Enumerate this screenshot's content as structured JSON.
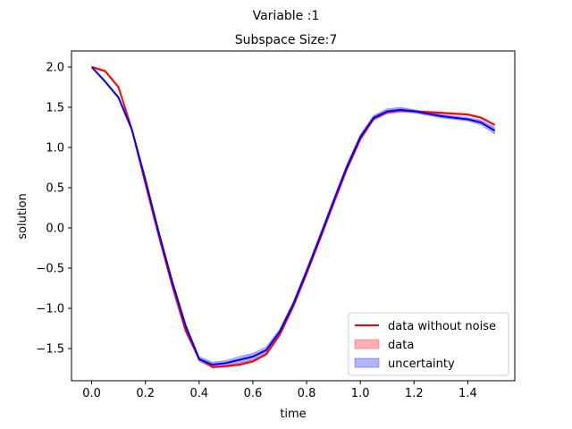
{
  "suptitle": "Variable :1",
  "chart_data": {
    "type": "line",
    "title": "Subspace Size:7",
    "xlabel": "time",
    "ylabel": "solution",
    "xlim": [
      -0.075,
      1.575
    ],
    "ylim": [
      -1.9,
      2.2
    ],
    "xticks": [
      0.0,
      0.2,
      0.4,
      0.6,
      0.8,
      1.0,
      1.2,
      1.4
    ],
    "xtick_labels": [
      "0.0",
      "0.2",
      "0.4",
      "0.6",
      "0.8",
      "1.0",
      "1.2",
      "1.4"
    ],
    "yticks": [
      -1.5,
      -1.0,
      -0.5,
      0.0,
      0.5,
      1.0,
      1.5,
      2.0
    ],
    "ytick_labels": [
      "−1.5",
      "−1.0",
      "−0.5",
      "0.0",
      "0.5",
      "1.0",
      "1.5",
      "2.0"
    ],
    "grid": false,
    "legend_position": "lower-right",
    "x": [
      0.0,
      0.05,
      0.1,
      0.15,
      0.2,
      0.25,
      0.3,
      0.35,
      0.4,
      0.45,
      0.5,
      0.55,
      0.6,
      0.65,
      0.7,
      0.75,
      0.8,
      0.85,
      0.9,
      0.95,
      1.0,
      1.05,
      1.1,
      1.15,
      1.2,
      1.25,
      1.3,
      1.35,
      1.4,
      1.45,
      1.5
    ],
    "series": [
      {
        "name": "data without noise",
        "kind": "line",
        "color": "#ff0000",
        "values": [
          2.0,
          1.95,
          1.75,
          1.22,
          0.55,
          -0.1,
          -0.72,
          -1.28,
          -1.63,
          -1.73,
          -1.72,
          -1.7,
          -1.66,
          -1.57,
          -1.33,
          -0.98,
          -0.57,
          -0.14,
          0.3,
          0.73,
          1.1,
          1.36,
          1.44,
          1.46,
          1.45,
          1.44,
          1.43,
          1.42,
          1.41,
          1.37,
          1.28
        ]
      },
      {
        "name": "data",
        "kind": "band",
        "color": "#ff0000",
        "lower": [
          1.99,
          1.94,
          1.74,
          1.21,
          0.54,
          -0.11,
          -0.73,
          -1.29,
          -1.64,
          -1.74,
          -1.73,
          -1.71,
          -1.67,
          -1.58,
          -1.34,
          -0.99,
          -0.58,
          -0.15,
          0.29,
          0.72,
          1.09,
          1.35,
          1.43,
          1.45,
          1.44,
          1.43,
          1.42,
          1.41,
          1.4,
          1.36,
          1.27
        ],
        "upper": [
          2.01,
          1.96,
          1.76,
          1.23,
          0.56,
          -0.09,
          -0.71,
          -1.27,
          -1.62,
          -1.72,
          -1.71,
          -1.69,
          -1.65,
          -1.56,
          -1.32,
          -0.97,
          -0.56,
          -0.13,
          0.31,
          0.74,
          1.11,
          1.37,
          1.45,
          1.47,
          1.46,
          1.45,
          1.44,
          1.43,
          1.42,
          1.38,
          1.29
        ]
      },
      {
        "name": "uncertainty",
        "kind": "band",
        "color": "#0000ff",
        "center": [
          2.0,
          1.82,
          1.62,
          1.22,
          0.6,
          -0.06,
          -0.67,
          -1.22,
          -1.63,
          -1.7,
          -1.68,
          -1.64,
          -1.6,
          -1.52,
          -1.29,
          -0.95,
          -0.54,
          -0.11,
          0.33,
          0.76,
          1.13,
          1.37,
          1.45,
          1.47,
          1.45,
          1.42,
          1.39,
          1.37,
          1.35,
          1.31,
          1.21
        ],
        "lower": [
          2.0,
          1.81,
          1.61,
          1.21,
          0.58,
          -0.08,
          -0.69,
          -1.25,
          -1.66,
          -1.73,
          -1.71,
          -1.68,
          -1.64,
          -1.55,
          -1.32,
          -0.98,
          -0.57,
          -0.14,
          0.3,
          0.73,
          1.1,
          1.34,
          1.42,
          1.44,
          1.43,
          1.4,
          1.37,
          1.35,
          1.33,
          1.28,
          1.17
        ],
        "upper": [
          2.0,
          1.83,
          1.63,
          1.23,
          0.62,
          -0.04,
          -0.65,
          -1.19,
          -1.6,
          -1.67,
          -1.65,
          -1.6,
          -1.56,
          -1.48,
          -1.26,
          -0.92,
          -0.51,
          -0.08,
          0.36,
          0.79,
          1.16,
          1.4,
          1.48,
          1.5,
          1.47,
          1.44,
          1.41,
          1.39,
          1.37,
          1.34,
          1.25
        ]
      }
    ]
  }
}
